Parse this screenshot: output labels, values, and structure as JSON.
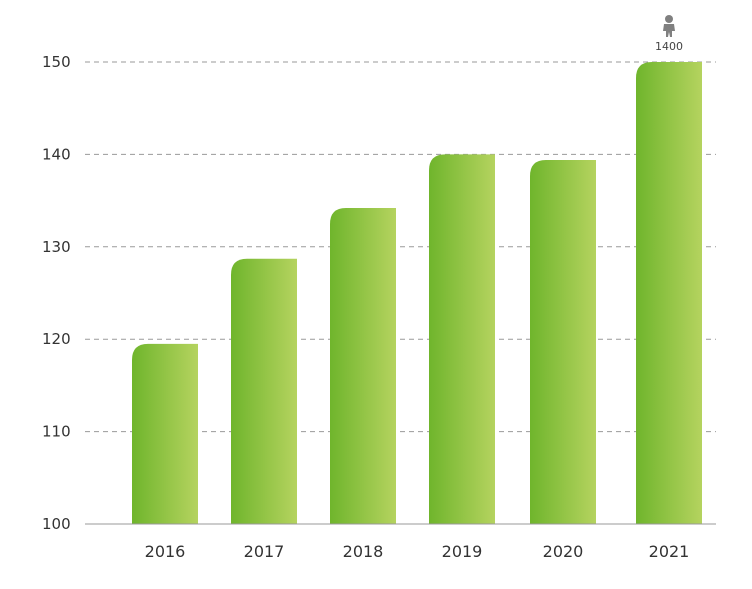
{
  "chart_data": {
    "type": "bar",
    "categories": [
      "2016",
      "2017",
      "2018",
      "2019",
      "2020",
      "2021"
    ],
    "values": [
      119.5,
      128.7,
      134.2,
      140.0,
      139.4,
      150.0
    ],
    "title": "",
    "xlabel": "",
    "ylabel": "",
    "ylim": [
      100,
      150
    ],
    "yticks": [
      "100",
      "110",
      "120",
      "130",
      "140",
      "150"
    ],
    "grid": true,
    "legend": "none",
    "bar_gradient": [
      "#6fb52c",
      "#b5d35f"
    ],
    "annotation": {
      "category": "2021",
      "icon": "person-icon",
      "label": "1400",
      "color": "#808080"
    }
  }
}
